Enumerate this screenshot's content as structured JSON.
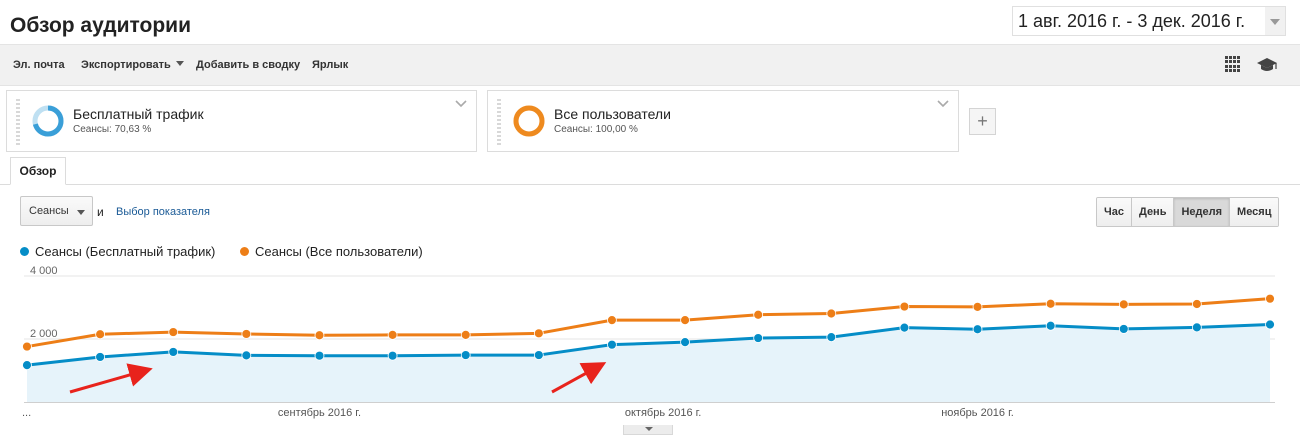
{
  "header": {
    "title": "Обзор аудитории",
    "date_range": "1 авг. 2016 г. - 3 дек. 2016 г."
  },
  "toolbar": {
    "email_label": "Эл. почта",
    "export_label": "Экспортировать",
    "add_to_dashboard_label": "Добавить в сводку",
    "shortcut_label": "Ярлык",
    "icons": [
      "grid-icon",
      "graduation-cap-icon"
    ]
  },
  "segments": [
    {
      "name": "Бесплатный трафик",
      "subtitle": "Сеансы: 70,63 %",
      "color": "#3a9fd8",
      "share": 0.7063
    },
    {
      "name": "Все пользователи",
      "subtitle": "Сеансы: 100,00 %",
      "color": "#ee8a1f",
      "share": 1.0
    }
  ],
  "add_segment_label": "+",
  "tabs": [
    {
      "label": "Обзор"
    }
  ],
  "controls": {
    "metric_select": "Сеансы",
    "and_label": "и",
    "metric_link": "Выбор показателя",
    "periods": [
      "Час",
      "День",
      "Неделя",
      "Месяц"
    ],
    "active_period": "Неделя"
  },
  "chart_data": {
    "type": "line",
    "y_ticks": [
      {
        "value": 2000,
        "label": "2 000"
      },
      {
        "value": 4000,
        "label": "4 000"
      }
    ],
    "ylim": [
      0,
      4000
    ],
    "x_labels": [
      {
        "index": 0,
        "label": "..."
      },
      {
        "index": 4,
        "label": "сентябрь 2016 г."
      },
      {
        "index": 8.7,
        "label": "октябрь 2016 г."
      },
      {
        "index": 13,
        "label": "ноябрь 2016 г."
      }
    ],
    "series": [
      {
        "name": "Сеансы (Бесплатный трафик)",
        "color": "#058dc7",
        "fill": "#e6f3fa",
        "values": [
          1170,
          1430,
          1590,
          1480,
          1470,
          1470,
          1490,
          1490,
          1820,
          1900,
          2030,
          2060,
          2360,
          2310,
          2420,
          2320,
          2370,
          2460
        ]
      },
      {
        "name": "Сеансы (Все пользователи)",
        "color": "#ed7e17",
        "values": [
          1760,
          2150,
          2220,
          2160,
          2120,
          2130,
          2130,
          2180,
          2600,
          2600,
          2770,
          2810,
          3030,
          3020,
          3120,
          3100,
          3110,
          3280
        ]
      }
    ]
  }
}
